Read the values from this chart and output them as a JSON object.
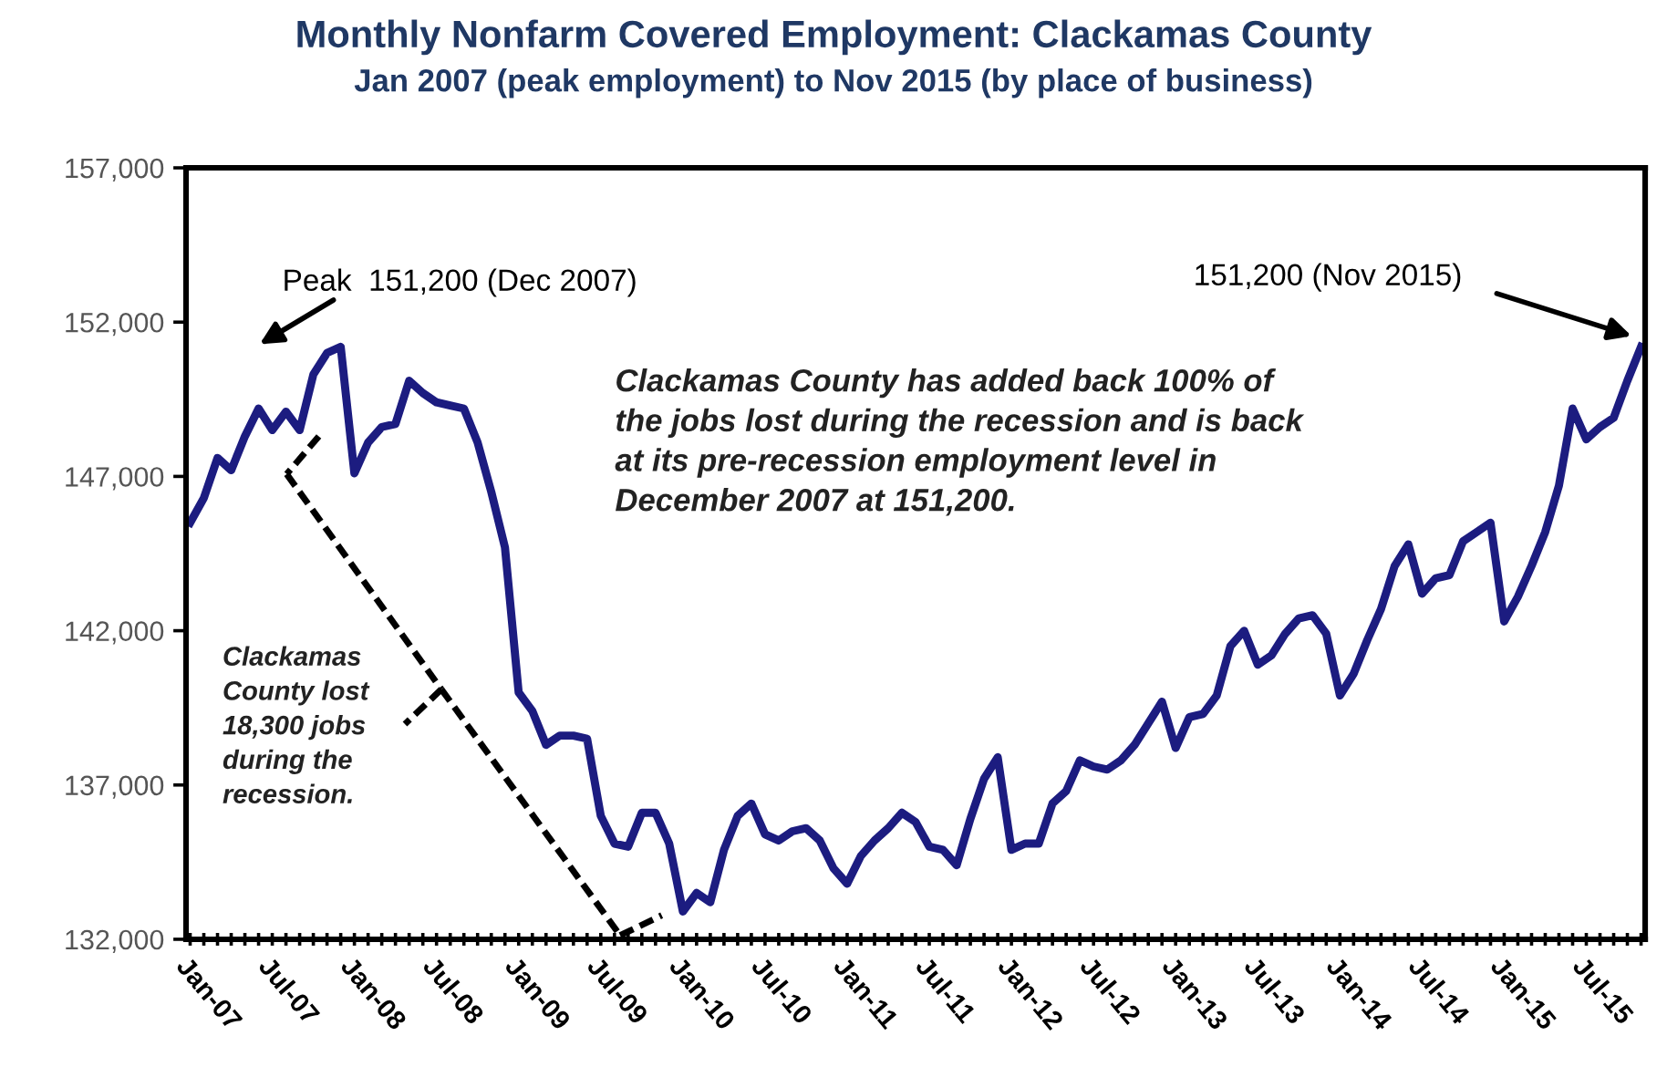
{
  "chart_data": {
    "type": "line",
    "title": "Monthly Nonfarm Covered Employment: Clackamas County",
    "subtitle": "Jan 2007 (peak employment) to Nov 2015 (by place of business)",
    "categories": [
      "Jan-07",
      null,
      null,
      null,
      null,
      null,
      "Jul-07",
      null,
      null,
      null,
      null,
      null,
      "Jan-08",
      null,
      null,
      null,
      null,
      null,
      "Jul-08",
      null,
      null,
      null,
      null,
      null,
      "Jan-09",
      null,
      null,
      null,
      null,
      null,
      "Jul-09",
      null,
      null,
      null,
      null,
      null,
      "Jan-10",
      null,
      null,
      null,
      null,
      null,
      "Jul-10",
      null,
      null,
      null,
      null,
      null,
      "Jan-11",
      null,
      null,
      null,
      null,
      null,
      "Jul-11",
      null,
      null,
      null,
      null,
      null,
      "Jan-12",
      null,
      null,
      null,
      null,
      null,
      "Jul-12",
      null,
      null,
      null,
      null,
      null,
      "Jan-13",
      null,
      null,
      null,
      null,
      null,
      "Jul-13",
      null,
      null,
      null,
      null,
      null,
      "Jan-14",
      null,
      null,
      null,
      null,
      null,
      "Jul-14",
      null,
      null,
      null,
      null,
      null,
      "Jan-15",
      null,
      null,
      null,
      null,
      null,
      "Jul-15",
      null,
      null,
      null,
      null
    ],
    "series": [
      {
        "color": "#1c1c80",
        "values": [
          145500,
          146300,
          147600,
          147200,
          148300,
          149200,
          148500,
          149100,
          148500,
          150300,
          151000,
          151200,
          147100,
          148100,
          148600,
          148700,
          150100,
          149700,
          149400,
          149300,
          149200,
          148100,
          146500,
          144700,
          140000,
          139400,
          138300,
          138600,
          138600,
          138500,
          136000,
          135100,
          135000,
          136100,
          136100,
          135100,
          132900,
          133500,
          133200,
          134900,
          136000,
          136400,
          135400,
          135200,
          135500,
          135600,
          135200,
          134300,
          133800,
          134700,
          135200,
          135600,
          136100,
          135800,
          135000,
          134900,
          134400,
          135900,
          137200,
          137900,
          134900,
          135100,
          135100,
          136400,
          136800,
          137800,
          137600,
          137500,
          137800,
          138300,
          139000,
          139700,
          138200,
          139200,
          139300,
          139900,
          141500,
          142000,
          140900,
          141200,
          141900,
          142400,
          142500,
          141900,
          139900,
          140600,
          141700,
          142700,
          144100,
          144800,
          143200,
          143700,
          143800,
          144900,
          145200,
          145500,
          142300,
          143100,
          144100,
          145200,
          146700,
          149200,
          148200,
          148600,
          148900,
          150100,
          151200
        ]
      }
    ],
    "ylim": [
      132000,
      157000
    ],
    "yticks": [
      {
        "value": 132000,
        "label": "132,000"
      },
      {
        "value": 137000,
        "label": "137,000"
      },
      {
        "value": 142000,
        "label": "142,000"
      },
      {
        "value": 147000,
        "label": "147,000"
      },
      {
        "value": 152000,
        "label": "152,000"
      },
      {
        "value": 157000,
        "label": "157,000"
      }
    ],
    "grid": false,
    "legend": false,
    "marker": "none",
    "line_style": "solid",
    "annotations": [
      "Peak  151,200 (Dec 2007)",
      "151,200 (Nov 2015)",
      "Clackamas County has added back 100% of\nthe jobs lost during the recession and is back\nat its pre-recession employment level in\nDecember 2007 at 151,200.",
      "Clackamas\nCounty lost\n18,300 jobs\nduring the\nrecession."
    ]
  }
}
